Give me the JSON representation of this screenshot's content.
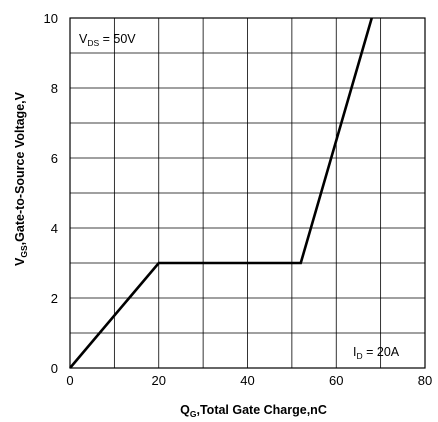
{
  "chart_data": {
    "type": "line",
    "x": [
      0,
      20,
      52,
      68
    ],
    "series": [
      {
        "values": [
          0,
          3,
          3,
          10
        ]
      }
    ],
    "xlabel": {
      "main": "Q",
      "sub": "G",
      "rest": ",Total Gate Charge,nC"
    },
    "ylabel": {
      "main": "V",
      "sub": "GS",
      "rest": ",Gate-to-Source Voltage,V"
    },
    "xlim": [
      0,
      80
    ],
    "ylim": [
      0,
      10
    ],
    "x_ticks": [
      "0",
      "20",
      "40",
      "60",
      "80"
    ],
    "y_ticks": [
      "0",
      "2",
      "4",
      "6",
      "8",
      "10"
    ],
    "grid": true,
    "annotations": [
      {
        "id": "vds",
        "main": "V",
        "sub": "DS",
        "rest": " = 50V",
        "placement": "top-left"
      },
      {
        "id": "id",
        "main": "I",
        "sub": "D",
        "rest": " = 20A",
        "placement": "bottom-right"
      }
    ],
    "colors": {
      "line": "#000000",
      "grid": "#000000",
      "background": "#ffffff"
    }
  }
}
